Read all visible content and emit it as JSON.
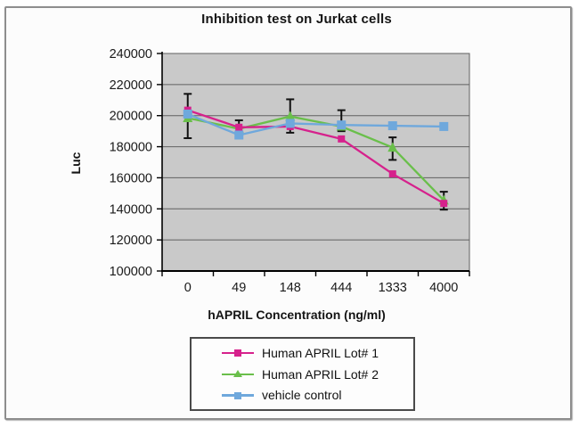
{
  "figure": {
    "border_color": "#8e8e8e",
    "background": "#fcfcfc"
  },
  "chart_data": {
    "type": "line",
    "title": "Inhibition test on Jurkat cells",
    "xlabel": "hAPRIL Concentration (ng/ml)",
    "ylabel": "Luc",
    "categories": [
      "0",
      "49",
      "148",
      "444",
      "1333",
      "4000"
    ],
    "ylim": [
      100000,
      240000
    ],
    "ytick_interval": 20000,
    "yticks": [
      240000,
      220000,
      200000,
      180000,
      160000,
      140000,
      120000,
      100000
    ],
    "grid": true,
    "plot_bg_color": "#c9c9c9",
    "grid_color": "#606060",
    "axis_color": "#000000",
    "error_bar_color": "#111111",
    "legend_position": "bottom",
    "series": [
      {
        "name": "Human APRIL Lot# 1",
        "color": "#d6218c",
        "marker": "square",
        "marker_size": 8,
        "values": [
          203500,
          192500,
          193000,
          185000,
          162500,
          143500
        ]
      },
      {
        "name": "Human APRIL Lot# 2",
        "color": "#6abf4b",
        "marker": "triangle",
        "marker_size": 11,
        "values": [
          198500,
          191500,
          199500,
          193000,
          179500,
          145500
        ]
      },
      {
        "name": "vehicle control",
        "color": "#6fa8dc",
        "marker": "square",
        "marker_size": 10,
        "values": [
          201000,
          187500,
          195000,
          194000,
          193500,
          193000
        ]
      }
    ],
    "error_bars": [
      {
        "category": "0",
        "low": 185500,
        "high": 214000
      },
      {
        "category": "49",
        "low": 187000,
        "high": 197000
      },
      {
        "category": "148",
        "low": 189000,
        "high": 210500
      },
      {
        "category": "444",
        "low": 190000,
        "high": 203500
      },
      {
        "category": "1333",
        "low": 171500,
        "high": 186000
      },
      {
        "category": "4000",
        "low": 139500,
        "high": 151000
      }
    ]
  }
}
